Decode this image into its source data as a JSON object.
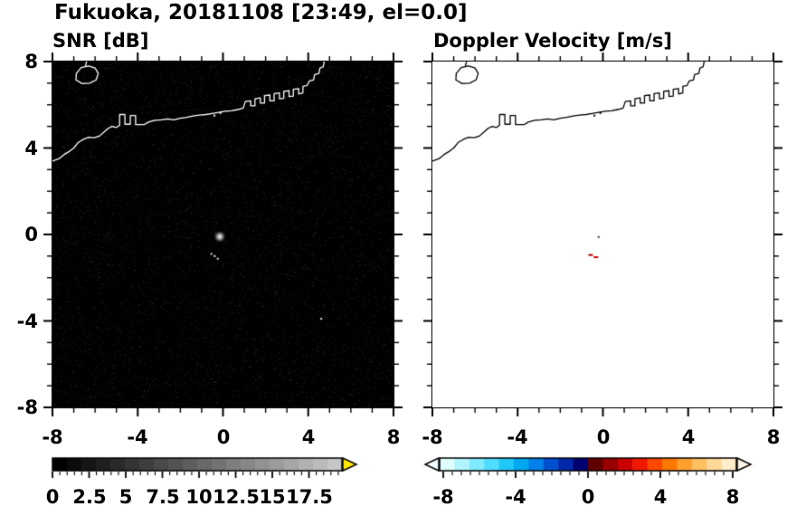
{
  "title": "Fukuoka, 20181108 [23:49, el=0.0]",
  "snr_panel": {
    "subtitle": "SNR [dB]",
    "x_tick_labels": [
      "-8",
      "-4",
      "0",
      "4",
      "8"
    ],
    "y_tick_labels": [
      "8",
      "4",
      "0",
      "-4",
      "-8"
    ],
    "colorbar_tick_labels": [
      "0",
      "2.5",
      "5",
      "7.5",
      "10",
      "12.5",
      "15",
      "17.5"
    ]
  },
  "doppler_panel": {
    "subtitle": "Doppler Velocity [m/s]",
    "x_tick_labels": [
      "-8",
      "-4",
      "0",
      "4",
      "8"
    ],
    "colorbar_tick_labels": [
      "-8",
      "-4",
      "0",
      "4",
      "8"
    ]
  },
  "colors": {
    "snr_bg": "#000000",
    "doppler_bg": "#ffffff",
    "coastline_snr": "#ffffff",
    "coastline_doppler": "#000000",
    "snr_over_arrow": "#ffe800",
    "doppler_under_arrow": "#eeffff",
    "doppler_over_arrow": "#fff6e6",
    "snr_colormap": [
      "#000000",
      "#0b0b0b",
      "#151515",
      "#1f1f1f",
      "#2a2a2a",
      "#343434",
      "#3e3e3e",
      "#494949",
      "#535353",
      "#5e5e5e",
      "#686868",
      "#727272",
      "#7d7d7d",
      "#878787",
      "#919191",
      "#9c9c9c",
      "#a6a6a6",
      "#b1b1b1",
      "#bbbbbb",
      "#c6c6c6"
    ],
    "doppler_colormap": [
      "#e0ffff",
      "#b0f4ff",
      "#80eaff",
      "#50dcff",
      "#20c8f8",
      "#00a8f0",
      "#0080e8",
      "#0050d0",
      "#0028a8",
      "#000070",
      "#600000",
      "#980000",
      "#c80000",
      "#f01800",
      "#ff4800",
      "#ff7800",
      "#ffa030",
      "#ffc060",
      "#ffd898",
      "#ffecc8"
    ]
  },
  "coastline": {
    "main": [
      [
        -8.0,
        3.4
      ],
      [
        -7.7,
        3.5
      ],
      [
        -7.45,
        3.7
      ],
      [
        -7.2,
        3.85
      ],
      [
        -7.0,
        4.0
      ],
      [
        -6.8,
        4.25
      ],
      [
        -6.55,
        4.4
      ],
      [
        -6.3,
        4.5
      ],
      [
        -6.05,
        4.48
      ],
      [
        -5.8,
        4.55
      ],
      [
        -5.6,
        4.72
      ],
      [
        -5.4,
        4.9
      ],
      [
        -5.2,
        5.0
      ],
      [
        -5.0,
        4.95
      ],
      [
        -4.85,
        5.05
      ],
      [
        -4.85,
        5.55
      ],
      [
        -4.6,
        5.55
      ],
      [
        -4.6,
        5.1
      ],
      [
        -4.35,
        5.1
      ],
      [
        -4.35,
        5.5
      ],
      [
        -4.1,
        5.5
      ],
      [
        -4.1,
        5.08
      ],
      [
        -3.7,
        5.08
      ],
      [
        -3.5,
        5.2
      ],
      [
        -3.2,
        5.28
      ],
      [
        -2.9,
        5.3
      ],
      [
        -2.6,
        5.35
      ],
      [
        -2.3,
        5.3
      ],
      [
        -2.0,
        5.38
      ],
      [
        -1.7,
        5.42
      ],
      [
        -1.4,
        5.48
      ],
      [
        -1.1,
        5.52
      ],
      [
        -0.8,
        5.55
      ],
      [
        -0.5,
        5.6
      ],
      [
        -0.2,
        5.65
      ],
      [
        0.1,
        5.7
      ],
      [
        0.4,
        5.72
      ],
      [
        0.7,
        5.78
      ],
      [
        0.95,
        5.85
      ],
      [
        1.05,
        6.15
      ],
      [
        1.3,
        6.18
      ],
      [
        1.3,
        5.95
      ],
      [
        1.5,
        5.95
      ],
      [
        1.5,
        6.28
      ],
      [
        1.75,
        6.32
      ],
      [
        1.75,
        6.08
      ],
      [
        1.95,
        6.08
      ],
      [
        1.95,
        6.42
      ],
      [
        2.2,
        6.45
      ],
      [
        2.2,
        6.18
      ],
      [
        2.4,
        6.18
      ],
      [
        2.4,
        6.52
      ],
      [
        2.65,
        6.55
      ],
      [
        2.65,
        6.28
      ],
      [
        2.85,
        6.3
      ],
      [
        2.85,
        6.62
      ],
      [
        3.1,
        6.65
      ],
      [
        3.1,
        6.38
      ],
      [
        3.3,
        6.4
      ],
      [
        3.3,
        6.72
      ],
      [
        3.55,
        6.75
      ],
      [
        3.55,
        6.5
      ],
      [
        3.75,
        6.55
      ],
      [
        3.75,
        6.85
      ],
      [
        3.95,
        6.9
      ],
      [
        4.05,
        7.1
      ],
      [
        4.25,
        7.15
      ],
      [
        4.3,
        7.4
      ],
      [
        4.5,
        7.45
      ],
      [
        4.55,
        7.7
      ],
      [
        4.7,
        7.75
      ],
      [
        4.75,
        8.0
      ]
    ],
    "island": [
      [
        -6.9,
        7.15
      ],
      [
        -6.6,
        6.98
      ],
      [
        -6.25,
        7.0
      ],
      [
        -5.95,
        7.15
      ],
      [
        -5.85,
        7.45
      ],
      [
        -6.0,
        7.7
      ],
      [
        -6.3,
        7.8
      ],
      [
        -6.65,
        7.72
      ],
      [
        -6.88,
        7.45
      ],
      [
        -6.9,
        7.15
      ]
    ],
    "island_tail": [
      [
        -6.45,
        7.8
      ],
      [
        -6.4,
        8.0
      ]
    ],
    "dots": [
      [
        -0.4,
        5.5
      ],
      [
        -0.12,
        5.62
      ]
    ]
  },
  "chart_data": [
    {
      "type": "heatmap",
      "title": "SNR [dB]",
      "xlim": [
        -8,
        8
      ],
      "ylim": [
        -8,
        8
      ],
      "x_ticks": [
        -8,
        -4,
        0,
        4,
        8
      ],
      "y_ticks": [
        -8,
        -4,
        0,
        4,
        8
      ],
      "grid": false,
      "background": "black field of near-zero-dB noise speckle with white coastline overlay",
      "colorbar": {
        "label_values": [
          0,
          2.5,
          5,
          7.5,
          10,
          12.5,
          15,
          17.5
        ],
        "range_shown": [
          0,
          19.75
        ],
        "colormap": "black-to-light-gray grayscale, yellow over-range arrow",
        "over_arrow_color": "#ffe800"
      },
      "echoes": [
        {
          "x": -0.15,
          "y": -0.1,
          "kind": "blob",
          "approx_snr_db": 15
        },
        {
          "x": -0.55,
          "y": -0.9,
          "kind": "speck",
          "approx_snr_db": 12
        },
        {
          "x": -0.4,
          "y": -1.0,
          "kind": "speck",
          "approx_snr_db": 12
        },
        {
          "x": -0.25,
          "y": -1.12,
          "kind": "speck",
          "approx_snr_db": 12
        },
        {
          "x": 4.6,
          "y": -3.9,
          "kind": "speck",
          "approx_snr_db": 8
        }
      ]
    },
    {
      "type": "heatmap",
      "title": "Doppler Velocity [m/s]",
      "xlim": [
        -8,
        8
      ],
      "ylim": [
        -8,
        8
      ],
      "x_ticks": [
        -8,
        -4,
        0,
        4,
        8
      ],
      "y_ticks": [
        -8,
        -4,
        0,
        4,
        8
      ],
      "grid": false,
      "background": "white field (no valid velocity data) with black coastline overlay",
      "colorbar": {
        "label_values": [
          -8,
          -4,
          0,
          4,
          8
        ],
        "range_shown": [
          -8.2,
          8.2
        ],
        "colormap": "diverging cyan-blue (negative) to red-orange (positive), arrows both ends",
        "under_arrow_color": "#eeffff",
        "over_arrow_color": "#fff6e6"
      },
      "echoes": [
        {
          "x": -0.6,
          "y": -0.95,
          "kind": "streak",
          "color": "#bb0000",
          "approx_velocity_ms": 5
        },
        {
          "x": -0.35,
          "y": -1.05,
          "kind": "streak",
          "color": "#d40000",
          "approx_velocity_ms": 6
        },
        {
          "x": -0.2,
          "y": -0.12,
          "kind": "speck",
          "color": "#333333",
          "approx_velocity_ms": 0
        }
      ]
    }
  ]
}
